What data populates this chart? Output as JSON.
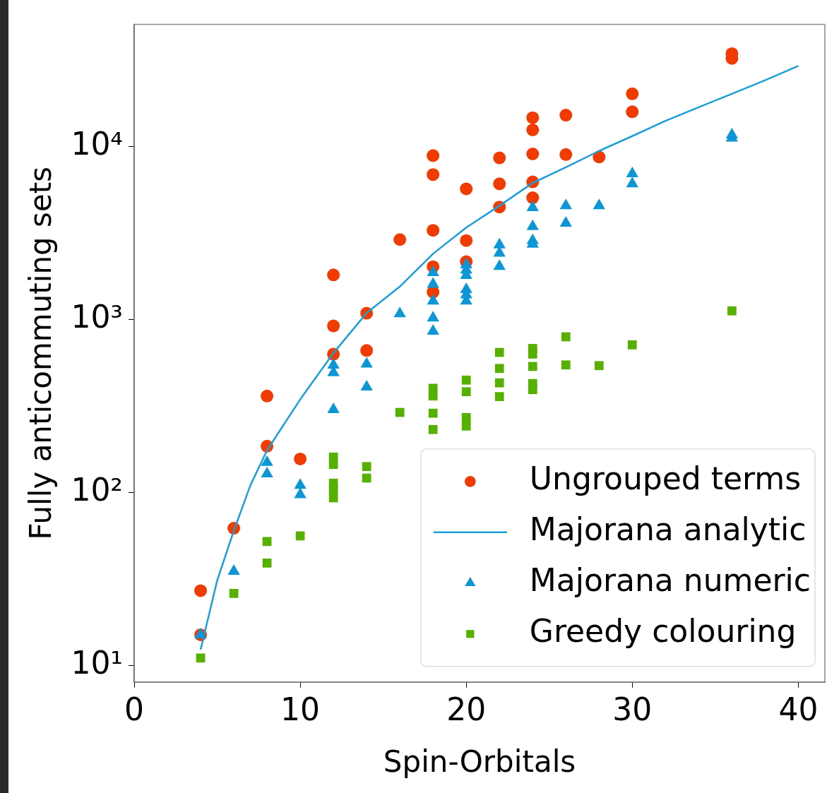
{
  "chart_data": {
    "type": "scatter",
    "xlabel": "Spin-Orbitals",
    "ylabel": "Fully anticommuting sets",
    "xlim": [
      0,
      41.6
    ],
    "xticks": [
      0,
      10,
      20,
      30,
      40
    ],
    "ylim": [
      8,
      51000
    ],
    "yticks": [
      {
        "value": 10,
        "label": "10¹"
      },
      {
        "value": 100,
        "label": "10²"
      },
      {
        "value": 1000,
        "label": "10³"
      },
      {
        "value": 10000,
        "label": "10⁴"
      }
    ],
    "log": "y",
    "grid": false,
    "legend": "bottom right",
    "series": [
      {
        "name": "Ungrouped terms",
        "marker": "circle",
        "color": "#f03c02",
        "x": [
          4,
          4,
          6,
          8,
          8,
          10,
          12,
          12,
          12,
          14,
          14,
          16,
          18,
          18,
          18,
          18,
          18,
          20,
          20,
          20,
          22,
          22,
          22,
          24,
          24,
          24,
          24,
          24,
          26,
          26,
          28,
          30,
          30,
          36,
          36
        ],
        "values": [
          27,
          15,
          62,
          361,
          185,
          156,
          1810,
          918,
          630,
          1087,
          662,
          2900,
          8870,
          6890,
          3280,
          2020,
          1440,
          5700,
          2860,
          2160,
          8610,
          6090,
          4470,
          14700,
          12500,
          9070,
          6250,
          5060,
          15200,
          9000,
          8710,
          20200,
          15900,
          34500,
          32400
        ]
      },
      {
        "name": "Majorana analytic",
        "type": "line",
        "marker": "none",
        "line_style": "solid",
        "color": "#1a9fd8",
        "x": [
          4,
          5,
          6,
          7,
          8,
          10,
          12,
          14,
          16,
          18,
          20,
          22,
          24,
          26,
          28,
          30,
          32,
          34,
          36,
          38,
          40
        ],
        "values": [
          12.3,
          31,
          60,
          110,
          175,
          345,
          640,
          1090,
          1550,
          2400,
          3400,
          4550,
          6160,
          7590,
          9440,
          11500,
          14100,
          16900,
          20200,
          24200,
          29300
        ]
      },
      {
        "name": "Majorana numeric",
        "marker": "triangle",
        "color": "#0d96d6",
        "x": [
          4,
          6,
          8,
          8,
          10,
          10,
          12,
          12,
          12,
          14,
          14,
          16,
          18,
          18,
          18,
          18,
          18,
          20,
          20,
          20,
          20,
          20,
          20,
          22,
          22,
          22,
          24,
          24,
          24,
          24,
          26,
          26,
          28,
          30,
          30,
          36,
          36
        ],
        "values": [
          15,
          35,
          149,
          128,
          110,
          97,
          545,
          492,
          301,
          552,
          407,
          1080,
          1870,
          1600,
          1280,
          1020,
          856,
          2070,
          1930,
          1800,
          1490,
          1390,
          1280,
          2700,
          2420,
          2030,
          4440,
          3450,
          2860,
          2730,
          4550,
          3610,
          4550,
          6970,
          6090,
          11700,
          11200
        ]
      },
      {
        "name": "Greedy colouring",
        "marker": "square",
        "color": "#56b000",
        "x": [
          4,
          6,
          8,
          8,
          10,
          12,
          12,
          12,
          12,
          12,
          14,
          14,
          16,
          18,
          18,
          18,
          18,
          20,
          20,
          20,
          20,
          22,
          22,
          22,
          22,
          24,
          24,
          24,
          24,
          24,
          26,
          26,
          28,
          30,
          36
        ],
        "values": [
          11,
          26,
          52,
          39,
          56,
          160,
          145,
          113,
          103,
          93,
          141,
          121,
          290,
          400,
          361,
          287,
          231,
          446,
          382,
          271,
          242,
          645,
          521,
          430,
          358,
          680,
          631,
          535,
          426,
          393,
          794,
          546,
          541,
          713,
          1122
        ]
      }
    ]
  }
}
